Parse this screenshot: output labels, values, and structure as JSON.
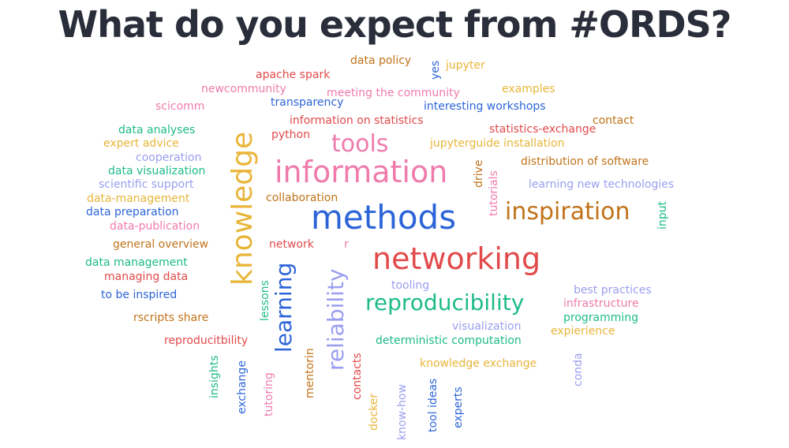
{
  "slide": {
    "title": "What do you expect from #ORDS?"
  },
  "words": [
    {
      "text": "data policy",
      "color": "#c0731a"
    },
    {
      "text": "yes",
      "color": "#2c64d8"
    },
    {
      "text": "jupyter",
      "color": "#e8b538"
    },
    {
      "text": "apache spark",
      "color": "#e24a4a"
    },
    {
      "text": "newcommunity",
      "color": "#ef7bab"
    },
    {
      "text": "meeting the community",
      "color": "#ef7bab"
    },
    {
      "text": "examples",
      "color": "#e8b538"
    },
    {
      "text": "scicomm",
      "color": "#ef7bab"
    },
    {
      "text": "transparency",
      "color": "#2c64d8"
    },
    {
      "text": "interesting workshops",
      "color": "#2c64d8"
    },
    {
      "text": "data analyses",
      "color": "#1dbb8a"
    },
    {
      "text": "information on statistics",
      "color": "#e24a4a"
    },
    {
      "text": "contact",
      "color": "#c0731a"
    },
    {
      "text": "statistics-exchange",
      "color": "#e24a4a"
    },
    {
      "text": "expert advice",
      "color": "#e8b538"
    },
    {
      "text": "python",
      "color": "#e24a4a"
    },
    {
      "text": "tools",
      "color": "#ef7bab"
    },
    {
      "text": "jupyterguide installation",
      "color": "#e8b538"
    },
    {
      "text": "cooperation",
      "color": "#9a9ef0"
    },
    {
      "text": "distribution of software",
      "color": "#c0731a"
    },
    {
      "text": "data visualization",
      "color": "#1dbb8a"
    },
    {
      "text": "information",
      "color": "#ef7bab"
    },
    {
      "text": "drive",
      "color": "#c0731a"
    },
    {
      "text": "tutorials",
      "color": "#ef7bab"
    },
    {
      "text": "scientific support",
      "color": "#9a9ef0"
    },
    {
      "text": "learning new technologies",
      "color": "#9a9ef0"
    },
    {
      "text": "knowledge",
      "color": "#e8b538"
    },
    {
      "text": "data-management",
      "color": "#e8b538"
    },
    {
      "text": "collaboration",
      "color": "#c0731a"
    },
    {
      "text": "data preparation",
      "color": "#2c64d8"
    },
    {
      "text": "methods",
      "color": "#2c64d8"
    },
    {
      "text": "inspiration",
      "color": "#c0731a"
    },
    {
      "text": "input",
      "color": "#1dbb8a"
    },
    {
      "text": "data-publication",
      "color": "#ef7bab"
    },
    {
      "text": "general overview",
      "color": "#c0731a"
    },
    {
      "text": "network",
      "color": "#e24a4a"
    },
    {
      "text": "r",
      "color": "#ef7bab"
    },
    {
      "text": "networking",
      "color": "#e24a4a"
    },
    {
      "text": "data management",
      "color": "#1dbb8a"
    },
    {
      "text": "managing data",
      "color": "#e24a4a"
    },
    {
      "text": "learning",
      "color": "#2c64d8"
    },
    {
      "text": "reliability",
      "color": "#9a9ef0"
    },
    {
      "text": "tooling",
      "color": "#9a9ef0"
    },
    {
      "text": "best practices",
      "color": "#9a9ef0"
    },
    {
      "text": "to be inspired",
      "color": "#2c64d8"
    },
    {
      "text": "lessons",
      "color": "#1dbb8a"
    },
    {
      "text": "reproducibility",
      "color": "#1dbb8a"
    },
    {
      "text": "infrastructure",
      "color": "#ef7bab"
    },
    {
      "text": "programming",
      "color": "#1dbb8a"
    },
    {
      "text": "rscripts share",
      "color": "#c0731a"
    },
    {
      "text": "visualization",
      "color": "#9a9ef0"
    },
    {
      "text": "expierience",
      "color": "#e8b538"
    },
    {
      "text": "reproducitbility",
      "color": "#e24a4a"
    },
    {
      "text": "deterministic computation",
      "color": "#1dbb8a"
    },
    {
      "text": "mentorin",
      "color": "#c0731a"
    },
    {
      "text": "contacts",
      "color": "#e24a4a"
    },
    {
      "text": "conda",
      "color": "#9a9ef0"
    },
    {
      "text": "knowledge exchange",
      "color": "#e8b538"
    },
    {
      "text": "insights",
      "color": "#1dbb8a"
    },
    {
      "text": "exchange",
      "color": "#2c64d8"
    },
    {
      "text": "tutoring",
      "color": "#ef7bab"
    },
    {
      "text": "docker",
      "color": "#e8b538"
    },
    {
      "text": "know-how",
      "color": "#9a9ef0"
    },
    {
      "text": "tool ideas",
      "color": "#2c64d8"
    },
    {
      "text": "experts",
      "color": "#2c64d8"
    }
  ]
}
